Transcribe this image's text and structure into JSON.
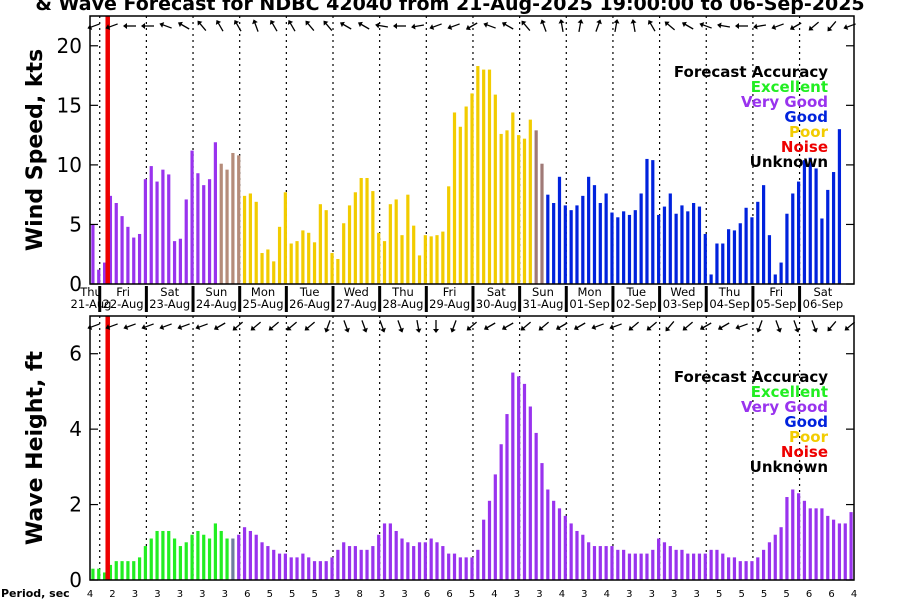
{
  "title": "& Wave Forecast for NDBC 42040 from 21-Aug-2025 19:00:00 to 06-Sep-2025",
  "colors": {
    "Excellent": "#22ee22",
    "Very Good": "#9933ee",
    "Good": "#0022dd",
    "Poor": "#f2cc00",
    "Noise": "#ee0000",
    "Unknown": "#000000",
    "transition_sun": "#b58c7a",
    "transition_sun2": "#a07a77",
    "transition_sat": "#7a6aa0",
    "transition_exc": "#6f7d9e"
  },
  "legend": {
    "title": "Forecast Accuracy",
    "items": [
      "Excellent",
      "Very Good",
      "Good",
      "Poor",
      "Noise",
      "Unknown"
    ]
  },
  "day_labels": [
    {
      "day": "Thu",
      "date": "21-Aug"
    },
    {
      "day": "Fri",
      "date": "22-Aug"
    },
    {
      "day": "Sat",
      "date": "23-Aug"
    },
    {
      "day": "Sun",
      "date": "24-Aug"
    },
    {
      "day": "Mon",
      "date": "25-Aug"
    },
    {
      "day": "Tue",
      "date": "26-Aug"
    },
    {
      "day": "Wed",
      "date": "27-Aug"
    },
    {
      "day": "Thu",
      "date": "28-Aug"
    },
    {
      "day": "Fri",
      "date": "29-Aug"
    },
    {
      "day": "Sat",
      "date": "30-Aug"
    },
    {
      "day": "Sun",
      "date": "31-Aug"
    },
    {
      "day": "Mon",
      "date": "01-Sep"
    },
    {
      "day": "Tue",
      "date": "02-Sep"
    },
    {
      "day": "Wed",
      "date": "03-Sep"
    },
    {
      "day": "Thu",
      "date": "04-Sep"
    },
    {
      "day": "Fri",
      "date": "05-Sep"
    },
    {
      "day": "Sat",
      "date": "06-Sep"
    }
  ],
  "period_label": "Period, sec",
  "periods": [
    4,
    2,
    3,
    3,
    3,
    3,
    3,
    6,
    5,
    5,
    5,
    3,
    8,
    3,
    3,
    6,
    6,
    5,
    4,
    3,
    3,
    4,
    3,
    4,
    3,
    3,
    3,
    3,
    5,
    5,
    5,
    5,
    6,
    6,
    4
  ],
  "chart_data": [
    {
      "type": "bar",
      "ylabel": "Wind Speed, kts",
      "ylim": [
        0,
        22.5
      ],
      "yticks": [
        0,
        5,
        10,
        15,
        20
      ],
      "x_unit": "hours from 21-Aug 19:00, 3-hourly bars",
      "series": [
        {
          "values": [
            5.0,
            1.2,
            1.8,
            7.4,
            6.8,
            5.7,
            4.8,
            3.9,
            4.2,
            8.8,
            9.9,
            8.6,
            9.6,
            9.2,
            3.6,
            3.8,
            7.1,
            11.2,
            9.3,
            8.3,
            8.8,
            11.9,
            10.1,
            9.6,
            11.0,
            10.8,
            7.4,
            7.6,
            6.9,
            2.6,
            2.9,
            1.9,
            4.8,
            7.7,
            3.4,
            3.6,
            4.5,
            4.3,
            3.5,
            6.7,
            6.2,
            2.6,
            2.1,
            5.1,
            6.6,
            7.7,
            8.9,
            8.9,
            7.8,
            4.3,
            3.6,
            6.7,
            7.1,
            4.1,
            7.5,
            4.9,
            2.4,
            4.1,
            4.0,
            4.1,
            4.4,
            8.2,
            14.4,
            13.2,
            14.9,
            16.0,
            18.3,
            18.0,
            18.0,
            15.9,
            12.6,
            12.9,
            14.4,
            12.5,
            12.2,
            13.8,
            12.9,
            10.1,
            7.5,
            6.8,
            9.0,
            6.6,
            6.2,
            6.6,
            7.4,
            9.0,
            8.3,
            6.8,
            7.6,
            6.0,
            5.6,
            6.1,
            5.8,
            6.2,
            7.6,
            10.5,
            10.4,
            5.8,
            6.5,
            7.6,
            5.9,
            6.6,
            6.1,
            6.8,
            6.5,
            4.2,
            0.8,
            3.4,
            3.4,
            4.6,
            4.5,
            5.1,
            6.4,
            5.6,
            6.9,
            8.3,
            4.1,
            0.8,
            1.8,
            5.9,
            7.6,
            8.6,
            10.4,
            10.6,
            9.7,
            5.5,
            7.9,
            9.4,
            13.0
          ],
          "quality_segments": [
            {
              "from": 0,
              "to": 1,
              "accuracy": "Very Good"
            },
            {
              "from": 2,
              "to": 8,
              "accuracy": "Very Good"
            },
            {
              "from": 9,
              "to": 21,
              "accuracy": "Very Good"
            },
            {
              "from": 22,
              "to": 25,
              "accuracy": "transition_sun"
            },
            {
              "from": 26,
              "to": 75,
              "accuracy": "Poor"
            },
            {
              "from": 76,
              "to": 77,
              "accuracy": "transition_sun2"
            },
            {
              "from": 78,
              "to": 130,
              "accuracy": "Good"
            }
          ]
        }
      ],
      "wind_direction_deg": [
        250,
        250,
        270,
        270,
        290,
        300,
        320,
        330,
        330,
        340,
        330,
        330,
        320,
        320,
        300,
        300,
        280,
        270,
        260,
        250,
        250,
        240,
        290,
        300,
        320,
        340,
        350,
        10,
        20,
        10,
        350,
        330,
        310,
        300,
        290,
        280,
        270,
        260,
        250,
        240,
        230,
        220,
        250
      ]
    },
    {
      "type": "bar",
      "ylabel": "Wave Height, ft",
      "ylim": [
        0,
        7
      ],
      "yticks": [
        0,
        2,
        4,
        6
      ],
      "series": [
        {
          "values": [
            0.3,
            0.3,
            0.2,
            0.4,
            0.5,
            0.5,
            0.5,
            0.5,
            0.6,
            0.9,
            1.1,
            1.3,
            1.3,
            1.3,
            1.1,
            0.9,
            1.0,
            1.2,
            1.3,
            1.2,
            1.1,
            1.5,
            1.3,
            1.1,
            1.1,
            1.2,
            1.4,
            1.3,
            1.2,
            1.0,
            0.9,
            0.8,
            0.7,
            0.7,
            0.6,
            0.6,
            0.7,
            0.6,
            0.5,
            0.5,
            0.5,
            0.6,
            0.8,
            1.0,
            0.9,
            0.9,
            0.8,
            0.8,
            0.9,
            1.2,
            1.5,
            1.5,
            1.3,
            1.1,
            1.0,
            0.9,
            1.0,
            1.0,
            1.1,
            1.0,
            0.9,
            0.7,
            0.7,
            0.6,
            0.6,
            0.6,
            0.8,
            1.6,
            2.1,
            2.8,
            3.6,
            4.4,
            5.5,
            5.4,
            5.2,
            4.6,
            3.9,
            3.1,
            2.4,
            2.1,
            1.9,
            1.7,
            1.5,
            1.3,
            1.2,
            1.0,
            0.9,
            0.9,
            0.9,
            0.9,
            0.8,
            0.8,
            0.7,
            0.7,
            0.7,
            0.7,
            0.8,
            1.1,
            1.0,
            0.9,
            0.8,
            0.8,
            0.7,
            0.7,
            0.7,
            0.7,
            0.8,
            0.8,
            0.7,
            0.6,
            0.6,
            0.5,
            0.5,
            0.5,
            0.6,
            0.8,
            1.0,
            1.2,
            1.4,
            2.2,
            2.4,
            2.3,
            2.1,
            1.9,
            1.9,
            1.9,
            1.7,
            1.6,
            1.5,
            1.5,
            1.8
          ],
          "quality_segments": [
            {
              "from": 0,
              "to": 23,
              "accuracy": "Excellent"
            },
            {
              "from": 24,
              "to": 24,
              "accuracy": "transition_exc"
            },
            {
              "from": 25,
              "to": 130,
              "accuracy": "Very Good"
            }
          ]
        }
      ],
      "wave_direction_deg": [
        250,
        250,
        250,
        250,
        250,
        250,
        250,
        240,
        230,
        230,
        230,
        230,
        230,
        200,
        160,
        160,
        160,
        160,
        170,
        180,
        200,
        230,
        240,
        240,
        230,
        230,
        240,
        240,
        250,
        250,
        230,
        230,
        220,
        230,
        240,
        240,
        250,
        200,
        160,
        160,
        160,
        220,
        230
      ]
    }
  ]
}
